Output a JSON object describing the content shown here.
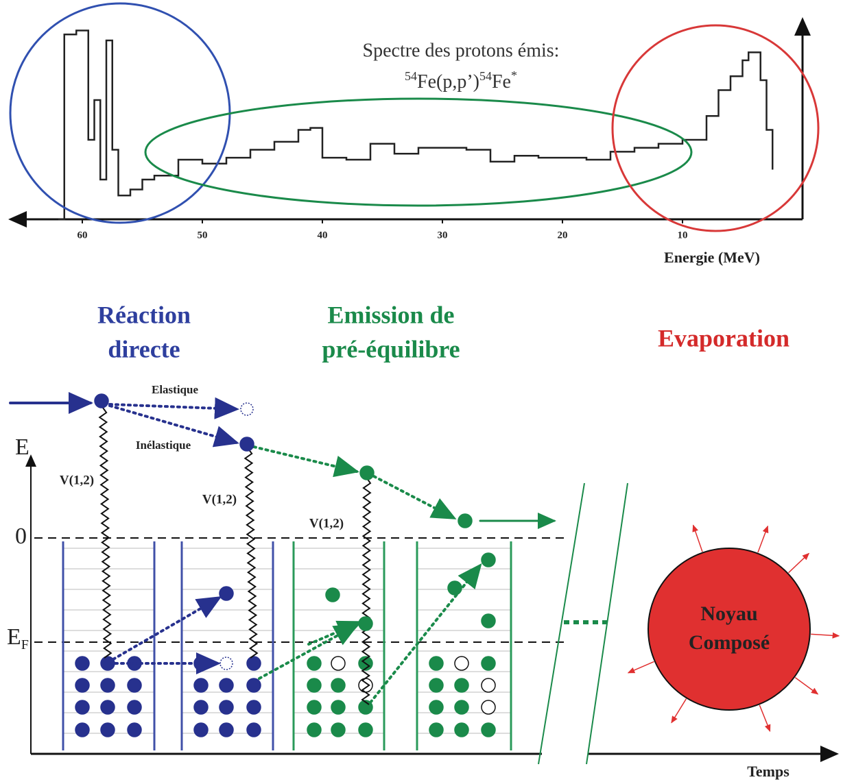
{
  "chart_data": {
    "type": "line",
    "title": "Spectre des protons émis:",
    "subtitle": [
      "54",
      "Fe(p,p’)",
      "54",
      "Fe",
      "*"
    ],
    "x_label": "Energie  (MeV)",
    "x": [
      62,
      61.5,
      60.5,
      59.5,
      59,
      58.5,
      58,
      57.5,
      57,
      56,
      55,
      54,
      52,
      50,
      48,
      46,
      44,
      42,
      41,
      40,
      38,
      36,
      34,
      32,
      30,
      28,
      26,
      24,
      22,
      20,
      18,
      16,
      14,
      12,
      10,
      8,
      7,
      6,
      5,
      4.5,
      3.5,
      3,
      2.5
    ],
    "values": [
      0,
      93,
      95,
      40,
      60,
      20,
      90,
      35,
      12,
      15,
      20,
      22,
      30,
      28,
      31,
      35,
      39,
      45,
      46,
      31,
      30,
      38,
      33,
      36,
      36,
      35,
      29,
      32,
      31,
      31,
      30,
      34,
      36,
      38,
      40,
      52,
      65,
      72,
      80,
      84,
      70,
      45,
      25
    ],
    "color": "#222222",
    "xlim": [
      66,
      0
    ],
    "ylim": [
      0,
      100
    ],
    "xticks": [
      60,
      50,
      40,
      30,
      20,
      10
    ]
  },
  "regions": {
    "direct": [
      "Réaction",
      "directe"
    ],
    "preequilibrium": [
      "Emission de",
      "pré-équilibre"
    ],
    "evaporation": "Evaporation"
  },
  "diagram": {
    "elastic": "Elastique",
    "inelastic": "Inélastique",
    "energy_axis": "E",
    "zero": "0",
    "fermi": {
      "symbol": "E",
      "subscript": "F"
    },
    "interaction": [
      "V(1,2)",
      "V(1,2)",
      "V(1,2)"
    ],
    "nucleus": [
      "Noyau",
      "Composé"
    ],
    "time_axis": "Temps"
  }
}
